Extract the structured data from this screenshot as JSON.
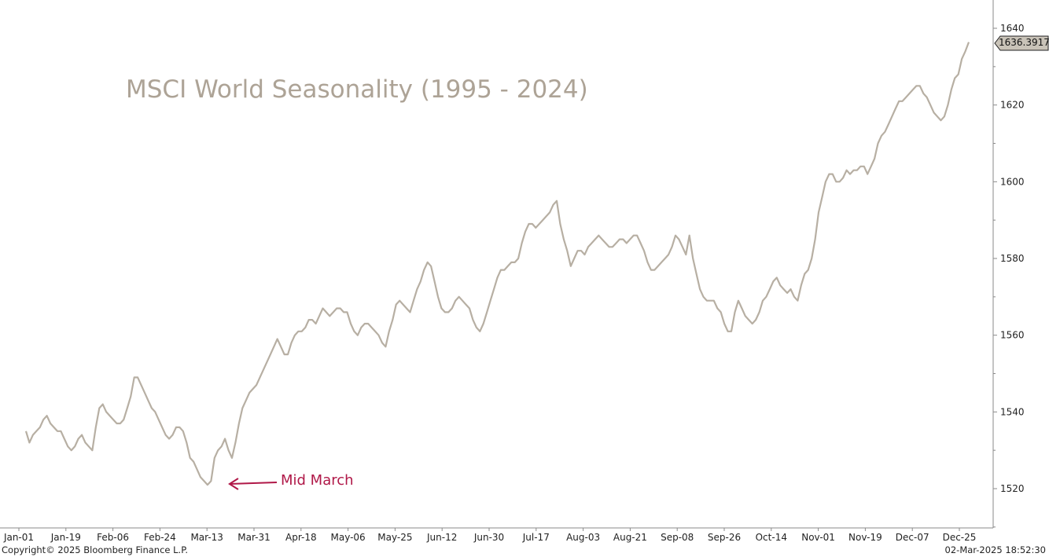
{
  "chart_data": {
    "type": "line",
    "title": "MSCI World Seasonality (1995 - 2024)",
    "xlabel": "",
    "ylabel": "",
    "x_ticks": [
      "Jan-01",
      "Jan-19",
      "Feb-06",
      "Feb-24",
      "Mar-13",
      "Mar-31",
      "Apr-18",
      "May-06",
      "May-25",
      "Jun-12",
      "Jun-30",
      "Jul-17",
      "Aug-03",
      "Aug-21",
      "Sep-08",
      "Sep-26",
      "Oct-14",
      "Nov-01",
      "Nov-19",
      "Dec-07",
      "Dec-25"
    ],
    "y_ticks": [
      1520,
      1540,
      1560,
      1580,
      1600,
      1620,
      1640
    ],
    "ylim": [
      1510,
      1643
    ],
    "grid": false,
    "line_color": "#b7afa3",
    "series": [
      {
        "values": [
          1535,
          1532,
          1534,
          1535,
          1536,
          1538,
          1539,
          1537,
          1536,
          1535,
          1535,
          1533,
          1531,
          1530,
          1531,
          1533,
          1534,
          1532,
          1531,
          1530,
          1536,
          1541,
          1542,
          1540,
          1539,
          1538,
          1537,
          1537,
          1538,
          1541,
          1544,
          1549,
          1549,
          1547,
          1545,
          1543,
          1541,
          1540,
          1538,
          1536,
          1534,
          1533,
          1534,
          1536,
          1536,
          1535,
          1532,
          1528,
          1527,
          1525,
          1523,
          1522,
          1521,
          1522,
          1528,
          1530,
          1531,
          1533,
          1530,
          1528,
          1532,
          1537,
          1541,
          1543,
          1545,
          1546,
          1547,
          1549,
          1551,
          1553,
          1555,
          1557,
          1559,
          1557,
          1555,
          1555,
          1558,
          1560,
          1561,
          1561,
          1562,
          1564,
          1564,
          1563,
          1565,
          1567,
          1566,
          1565,
          1566,
          1567,
          1567,
          1566,
          1566,
          1563,
          1561,
          1560,
          1562,
          1563,
          1563,
          1562,
          1561,
          1560,
          1558,
          1557,
          1561,
          1564,
          1568,
          1569,
          1568,
          1567,
          1566,
          1569,
          1572,
          1574,
          1577,
          1579,
          1578,
          1574,
          1570,
          1567,
          1566,
          1566,
          1567,
          1569,
          1570,
          1569,
          1568,
          1567,
          1564,
          1562,
          1561,
          1563,
          1566,
          1569,
          1572,
          1575,
          1577,
          1577,
          1578,
          1579,
          1579,
          1580,
          1584,
          1587,
          1589,
          1589,
          1588,
          1589,
          1590,
          1591,
          1592,
          1594,
          1595,
          1589,
          1585,
          1582,
          1578,
          1580,
          1582,
          1582,
          1581,
          1583,
          1584,
          1585,
          1586,
          1585,
          1584,
          1583,
          1583,
          1584,
          1585,
          1585,
          1584,
          1585,
          1586,
          1586,
          1584,
          1582,
          1579,
          1577,
          1577,
          1578,
          1579,
          1580,
          1581,
          1583,
          1586,
          1585,
          1583,
          1581,
          1586,
          1580,
          1576,
          1572,
          1570,
          1569,
          1569,
          1569,
          1567,
          1566,
          1563,
          1561,
          1561,
          1566,
          1569,
          1567,
          1565,
          1564,
          1563,
          1564,
          1566,
          1569,
          1570,
          1572,
          1574,
          1575,
          1573,
          1572,
          1571,
          1572,
          1570,
          1569,
          1573,
          1576,
          1577,
          1580,
          1585,
          1592,
          1596,
          1600,
          1602,
          1602,
          1600,
          1600,
          1601,
          1603,
          1602,
          1603,
          1603,
          1604,
          1604,
          1602,
          1604,
          1606,
          1610,
          1612,
          1613,
          1615,
          1617,
          1619,
          1621,
          1621,
          1622,
          1623,
          1624,
          1625,
          1625,
          1623,
          1622,
          1620,
          1618,
          1617,
          1616,
          1617,
          1620,
          1624,
          1627,
          1628,
          1632,
          1634,
          1636.3917
        ]
      }
    ],
    "last_value_label": "1636.3917",
    "annotations": [
      {
        "text": "Mid March",
        "color": "#b01848",
        "target_index": 52
      }
    ]
  },
  "footer": {
    "copyright": "Copyright© 2025 Bloomberg Finance L.P.",
    "timestamp": "02-Mar-2025 18:52:30"
  }
}
